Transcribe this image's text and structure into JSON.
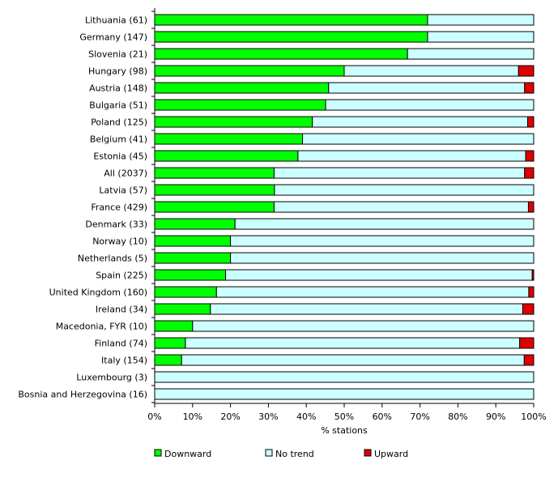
{
  "chart_data": {
    "type": "bar",
    "orientation": "horizontal",
    "stacked": "percent",
    "xlabel": "% stations",
    "xlim": [
      0,
      100
    ],
    "x_ticks": [
      "0%",
      "10%",
      "20%",
      "30%",
      "40%",
      "50%",
      "60%",
      "70%",
      "80%",
      "90%",
      "100%"
    ],
    "grid": false,
    "legend_position": "bottom",
    "categories": [
      "Lithuania (61)",
      "Germany  (147)",
      "Slovenia (21)",
      "Hungary (98)",
      "Austria (148)",
      "Bulgaria (51)",
      "Poland (125)",
      "Belgium (41)",
      "Estonia (45)",
      "All (2037)",
      "Latvia (57)",
      "France (429)",
      "Denmark (33)",
      "Norway (10)",
      "Netherlands (5)",
      "Spain (225)",
      "United Kingdom (160)",
      "Ireland (34)",
      "Macedonia, FYR (10)",
      "Finland (74)",
      "Italy (154)",
      "Luxembourg (3)",
      "Bosnia and Herzegovina (16)"
    ],
    "series": [
      {
        "name": "Downward",
        "color": "#00ff00",
        "values": [
          72,
          72,
          66.7,
          50,
          45.9,
          45.1,
          41.6,
          39,
          37.8,
          31.5,
          31.6,
          31.5,
          21.2,
          20,
          20,
          18.7,
          16.3,
          14.7,
          10,
          8.1,
          7.1,
          0,
          0
        ]
      },
      {
        "name": "No trend",
        "color": "#ccffff",
        "values": [
          28,
          28,
          33.3,
          46,
          51.7,
          54.9,
          56.8,
          61,
          60.1,
          66.1,
          68.4,
          67.1,
          78.8,
          80,
          80,
          80.9,
          82.4,
          82.4,
          90,
          88.2,
          90.4,
          100,
          100
        ]
      },
      {
        "name": "Upward",
        "color": "#e00000",
        "values": [
          0,
          0,
          0,
          4,
          2.4,
          0,
          1.6,
          0,
          2.1,
          2.4,
          0,
          1.4,
          0,
          0,
          0,
          0.4,
          1.3,
          2.9,
          0,
          3.7,
          2.5,
          0,
          0
        ]
      }
    ]
  }
}
